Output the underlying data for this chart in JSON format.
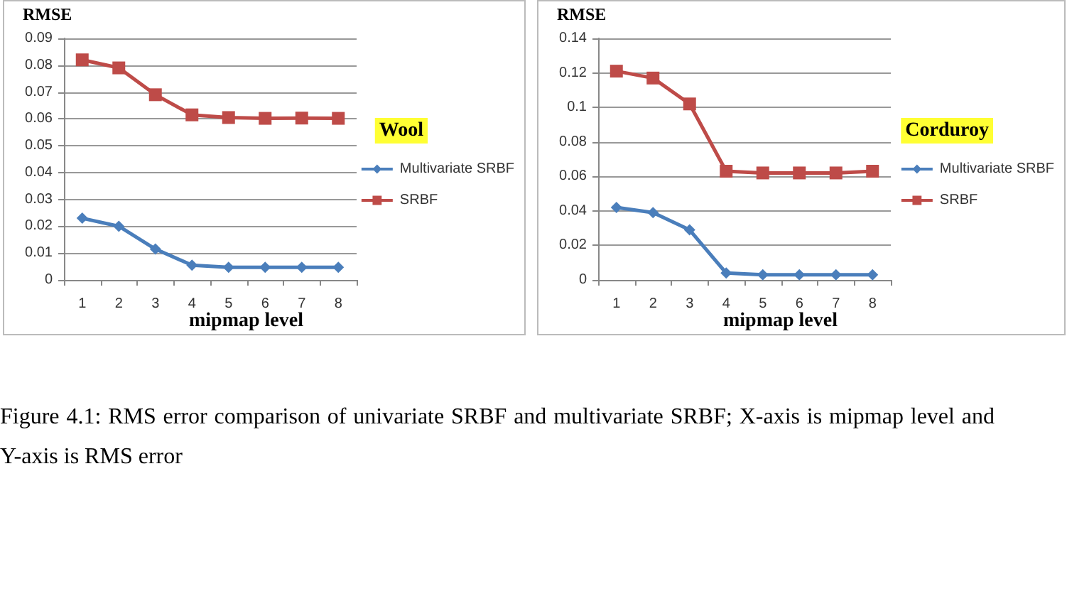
{
  "chart_data": [
    {
      "type": "line",
      "ylabel": "RMSE",
      "xlabel": "mipmap level",
      "legend_title": "Wool",
      "legend": "right",
      "grid": "y",
      "categories": [
        "1",
        "2",
        "3",
        "4",
        "5",
        "6",
        "7",
        "8"
      ],
      "ylim": [
        0,
        0.09
      ],
      "yticks": [
        0,
        0.01,
        0.02,
        0.03,
        0.04,
        0.05,
        0.06,
        0.07,
        0.08,
        0.09
      ],
      "series": [
        {
          "name": "Multivariate SRBF",
          "color": "#4a7ebb",
          "marker": "diamond",
          "values": [
            0.023,
            0.02,
            0.0115,
            0.0055,
            0.0047,
            0.0047,
            0.0047,
            0.0047
          ]
        },
        {
          "name": "SRBF",
          "color": "#be4b48",
          "marker": "square",
          "values": [
            0.082,
            0.079,
            0.069,
            0.0615,
            0.0605,
            0.0602,
            0.0603,
            0.0602
          ]
        }
      ]
    },
    {
      "type": "line",
      "ylabel": "RMSE",
      "xlabel": "mipmap level",
      "legend_title": "Corduroy",
      "legend": "right",
      "grid": "y",
      "categories": [
        "1",
        "2",
        "3",
        "4",
        "5",
        "6",
        "7",
        "8"
      ],
      "ylim": [
        0,
        0.14
      ],
      "yticks": [
        0,
        0.02,
        0.04,
        0.06,
        0.08,
        0.1,
        0.12,
        0.14
      ],
      "series": [
        {
          "name": "Multivariate SRBF",
          "color": "#4a7ebb",
          "marker": "diamond",
          "values": [
            0.042,
            0.039,
            0.029,
            0.004,
            0.003,
            0.003,
            0.003,
            0.003
          ]
        },
        {
          "name": "SRBF",
          "color": "#be4b48",
          "marker": "square",
          "values": [
            0.121,
            0.117,
            0.102,
            0.063,
            0.062,
            0.062,
            0.062,
            0.063
          ]
        }
      ],
      "annotations": [
        "Figure 4.1: RMS error comparison of univariate SRBF and multivariate SRBF; X-axis is mipmap level and Y-axis is RMS error"
      ]
    }
  ]
}
